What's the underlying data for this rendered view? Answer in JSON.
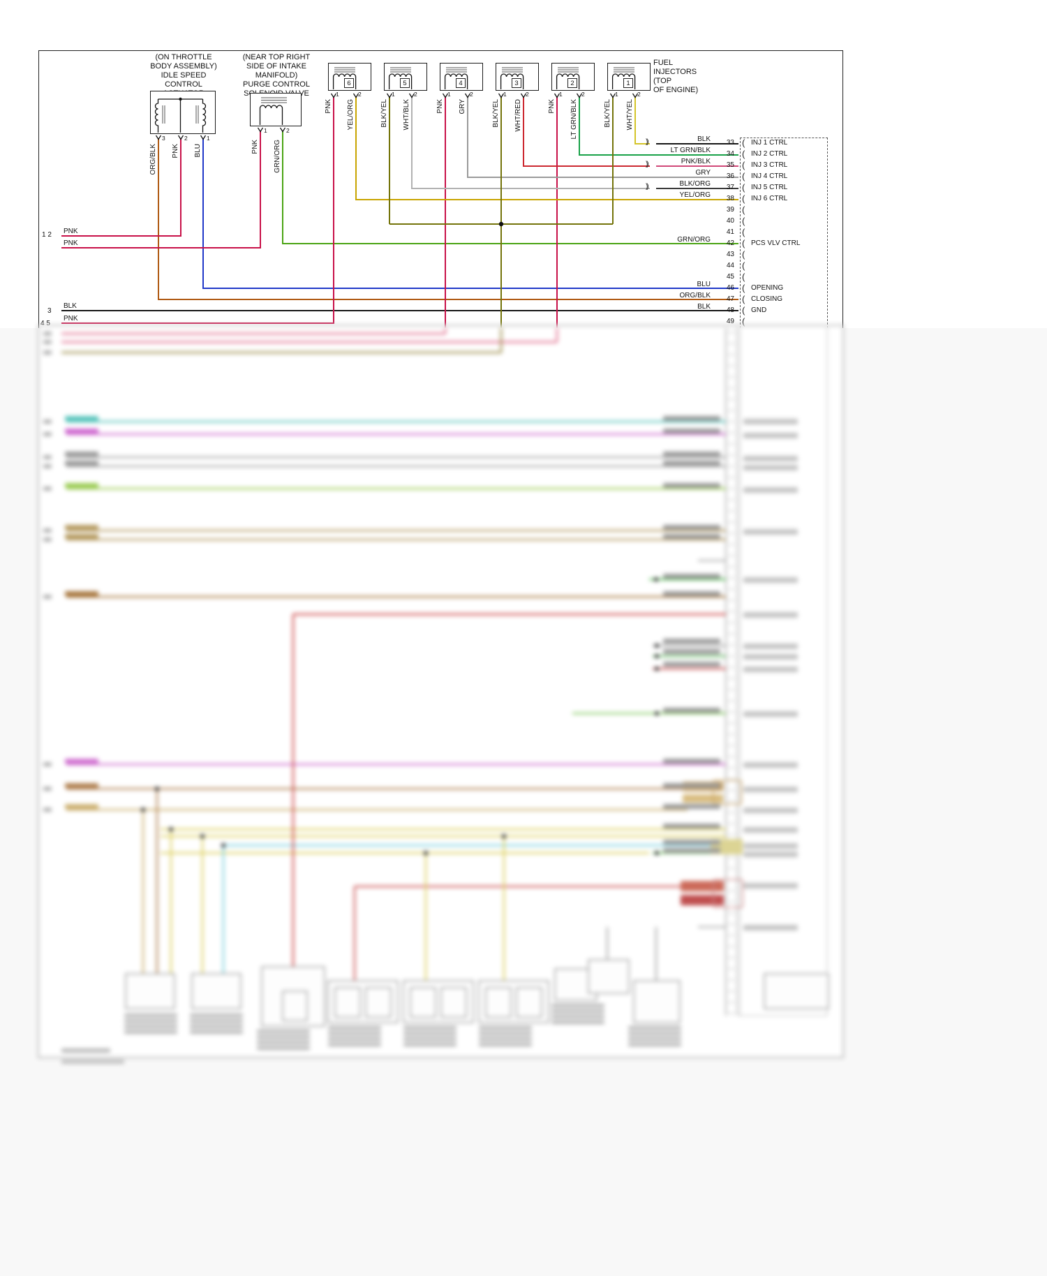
{
  "colors": {
    "pnk": "#c81048",
    "org_blk": "#b05a14",
    "blu": "#2038c8",
    "grn_org": "#4aa414",
    "lt_grn_blk": "#18a148",
    "wht_yel": "#d4c428",
    "wht_red": "#cc2830",
    "pnk_blk": "#d04878",
    "gry": "#9a9a9a",
    "wht_blk": "#b2b2b2",
    "blk_org": "#3a3a3a",
    "yel_org": "#c8a400",
    "blk_yel": "#74740a",
    "blk": "#161616"
  },
  "top_diagram": {
    "actuator": {
      "caption": "(ON THROTTLE\nBODY ASSEMBLY)\nIDLE SPEED\nCONTROL\nACTUATOR",
      "pins": [
        {
          "num": "3",
          "wire": "ORG/BLK"
        },
        {
          "num": "2",
          "wire": "PNK"
        },
        {
          "num": "1",
          "wire": "BLU"
        }
      ]
    },
    "purge_valve": {
      "caption": "(NEAR TOP RIGHT\nSIDE OF INTAKE\nMANIFOLD)\nPURGE CONTROL\nSOLENOID VALVE",
      "pins": [
        {
          "num": "1",
          "wire": "PNK"
        },
        {
          "num": "2",
          "wire": "GRN/ORG"
        }
      ]
    },
    "injectors": {
      "caption": "FUEL INJECTORS\n(TOP\nOF ENGINE)",
      "pin_numbers": [
        "1",
        "2"
      ],
      "items": [
        {
          "number": "6",
          "pin1_wire": "PNK",
          "pin2_wire": "YEL/ORG"
        },
        {
          "number": "5",
          "pin1_wire": "BLK/YEL",
          "pin2_wire": "WHT/BLK"
        },
        {
          "number": "4",
          "pin1_wire": "PNK",
          "pin2_wire": "GRY"
        },
        {
          "number": "3",
          "pin1_wire": "BLK/YEL",
          "pin2_wire": "WHT/RED"
        },
        {
          "number": "2",
          "pin1_wire": "PNK",
          "pin2_wire": "LT GRN/BLK"
        },
        {
          "number": "1",
          "pin1_wire": "BLK/YEL",
          "pin2_wire": "WHT/YEL"
        }
      ]
    },
    "left_pins": [
      {
        "nums": "1 2",
        "wires": [
          "PNK",
          "PNK"
        ]
      },
      {
        "nums": "3",
        "wires": [
          "BLK"
        ]
      },
      {
        "nums": "4 5",
        "wires": [
          "PNK"
        ]
      }
    ],
    "ecm_connector": {
      "rows": [
        {
          "wire": "BLK",
          "pin": "33",
          "label": "INJ 1 CTRL",
          "splice": true
        },
        {
          "wire": "LT GRN/BLK",
          "pin": "34",
          "label": "INJ 2 CTRL"
        },
        {
          "wire": "PNK/BLK",
          "pin": "35",
          "label": "INJ 3 CTRL",
          "splice": true
        },
        {
          "wire": "GRY",
          "pin": "36",
          "label": "INJ 4 CTRL"
        },
        {
          "wire": "BLK/ORG",
          "pin": "37",
          "label": "INJ 5 CTRL",
          "splice": true
        },
        {
          "wire": "YEL/ORG",
          "pin": "38",
          "label": "INJ 6 CTRL"
        },
        {
          "pin": "39"
        },
        {
          "pin": "40"
        },
        {
          "pin": "41"
        },
        {
          "wire": "GRN/ORG",
          "pin": "42",
          "label": "PCS VLV CTRL"
        },
        {
          "pin": "43"
        },
        {
          "pin": "44"
        },
        {
          "pin": "45"
        },
        {
          "wire": "BLU",
          "pin": "46",
          "label": "OPENING"
        },
        {
          "wire": "ORG/BLK",
          "pin": "47",
          "label": "CLOSING"
        },
        {
          "wire": "BLK",
          "pin": "48",
          "label": "GND"
        },
        {
          "pin": "49"
        }
      ]
    }
  }
}
